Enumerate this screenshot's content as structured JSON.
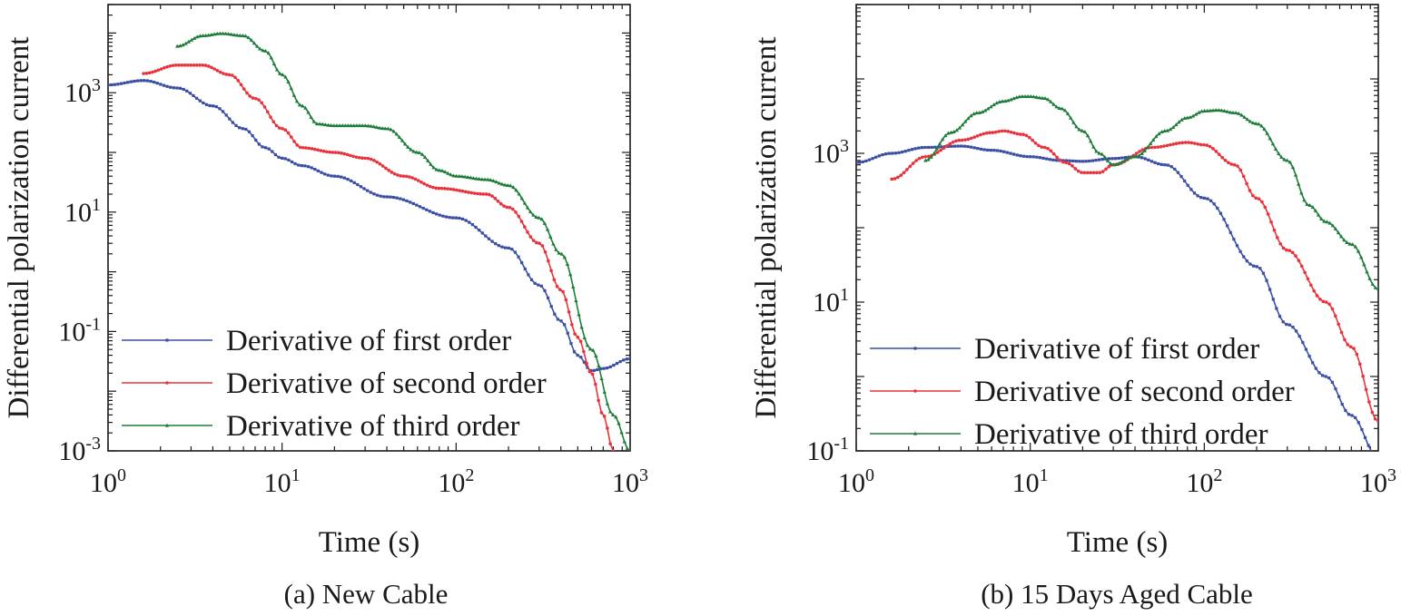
{
  "chart_data": [
    {
      "type": "line",
      "caption": "(a) New Cable",
      "xlabel": "Time (s)",
      "ylabel": "Differential polarization current",
      "xscale": "log",
      "yscale": "log",
      "xlim": [
        1,
        1000
      ],
      "ylim": [
        0.001,
        30000
      ],
      "xticks": [
        {
          "value": 1,
          "base": "10",
          "exp": "0"
        },
        {
          "value": 10,
          "base": "10",
          "exp": "1"
        },
        {
          "value": 100,
          "base": "10",
          "exp": "2"
        },
        {
          "value": 1000,
          "base": "10",
          "exp": "3"
        }
      ],
      "yticks": [
        {
          "value": 0.001,
          "base": "10",
          "exp": "-3"
        },
        {
          "value": 0.1,
          "base": "10",
          "exp": "-1"
        },
        {
          "value": 10,
          "base": "10",
          "exp": "1"
        },
        {
          "value": 1000,
          "base": "10",
          "exp": "3"
        }
      ],
      "legend_position": "bottom-left",
      "series": [
        {
          "name": "Derivative of first order",
          "color": "#3a4fa3",
          "marker": "square",
          "x": [
            1,
            1.6,
            2.5,
            4,
            6,
            8,
            10,
            13,
            20,
            40,
            100,
            200,
            300,
            400,
            500,
            600,
            700,
            1000
          ],
          "y": [
            1350,
            1600,
            1200,
            600,
            250,
            120,
            80,
            60,
            40,
            18,
            8,
            2.5,
            0.6,
            0.15,
            0.04,
            0.022,
            0.024,
            0.035
          ]
        },
        {
          "name": "Derivative of second order",
          "color": "#e8333c",
          "marker": "circle",
          "x": [
            1.6,
            2.5,
            3.5,
            5,
            7,
            10,
            13,
            20,
            30,
            50,
            80,
            150,
            200,
            300,
            400,
            500,
            600,
            700,
            800
          ],
          "y": [
            2100,
            2900,
            2900,
            2000,
            800,
            250,
            120,
            100,
            80,
            40,
            25,
            20,
            12,
            3,
            0.5,
            0.08,
            0.02,
            0.004,
            0.001
          ]
        },
        {
          "name": "Derivative of third order",
          "color": "#1e7d3a",
          "marker": "triangle",
          "x": [
            2.5,
            3.5,
            4.5,
            6,
            8,
            10,
            13,
            16,
            20,
            30,
            40,
            60,
            80,
            100,
            150,
            200,
            300,
            400,
            600,
            800,
            1000
          ],
          "y": [
            6000,
            9000,
            9800,
            9000,
            5000,
            2000,
            600,
            300,
            280,
            280,
            250,
            100,
            50,
            40,
            35,
            28,
            8,
            2,
            0.05,
            0.004,
            0.001
          ]
        }
      ]
    },
    {
      "type": "line",
      "caption": "(b) 15 Days Aged Cable",
      "xlabel": "Time (s)",
      "ylabel": "Differential polarization current",
      "xscale": "log",
      "yscale": "log",
      "xlim": [
        1,
        1000
      ],
      "ylim": [
        0.1,
        100000
      ],
      "xticks": [
        {
          "value": 1,
          "base": "10",
          "exp": "0"
        },
        {
          "value": 10,
          "base": "10",
          "exp": "1"
        },
        {
          "value": 100,
          "base": "10",
          "exp": "2"
        },
        {
          "value": 1000,
          "base": "10",
          "exp": "3"
        }
      ],
      "yticks": [
        {
          "value": 0.1,
          "base": "10",
          "exp": "-1"
        },
        {
          "value": 10,
          "base": "10",
          "exp": "1"
        },
        {
          "value": 1000,
          "base": "10",
          "exp": "3"
        }
      ],
      "legend_position": "bottom-left",
      "series": [
        {
          "name": "Derivative of first order",
          "color": "#3a4fa3",
          "marker": "square",
          "x": [
            1,
            1.6,
            2.5,
            4,
            6,
            10,
            15,
            20,
            30,
            40,
            60,
            100,
            200,
            300,
            500,
            700,
            1000
          ],
          "y": [
            750,
            1000,
            1200,
            1250,
            1100,
            900,
            800,
            780,
            850,
            900,
            700,
            250,
            30,
            5,
            1,
            0.3,
            0.08
          ]
        },
        {
          "name": "Derivative of second order",
          "color": "#e8333c",
          "marker": "circle",
          "x": [
            1.6,
            2.5,
            4,
            6,
            7,
            9,
            12,
            16,
            20,
            25,
            30,
            50,
            80,
            100,
            150,
            200,
            300,
            500,
            700,
            1000
          ],
          "y": [
            450,
            900,
            1500,
            1900,
            2000,
            1800,
            1200,
            750,
            550,
            550,
            700,
            1200,
            1400,
            1300,
            700,
            250,
            50,
            10,
            2.5,
            0.25
          ]
        },
        {
          "name": "Derivative of third order",
          "color": "#1e7d3a",
          "marker": "triangle",
          "x": [
            2.5,
            3.5,
            5,
            7,
            9,
            10,
            12,
            15,
            20,
            25,
            30,
            40,
            60,
            80,
            100,
            120,
            150,
            200,
            300,
            400,
            500,
            700,
            1000
          ],
          "y": [
            800,
            1900,
            3500,
            5000,
            5800,
            5800,
            5500,
            4000,
            2000,
            1000,
            700,
            900,
            2000,
            3000,
            3700,
            3800,
            3500,
            2500,
            800,
            200,
            120,
            60,
            15
          ]
        }
      ]
    }
  ]
}
